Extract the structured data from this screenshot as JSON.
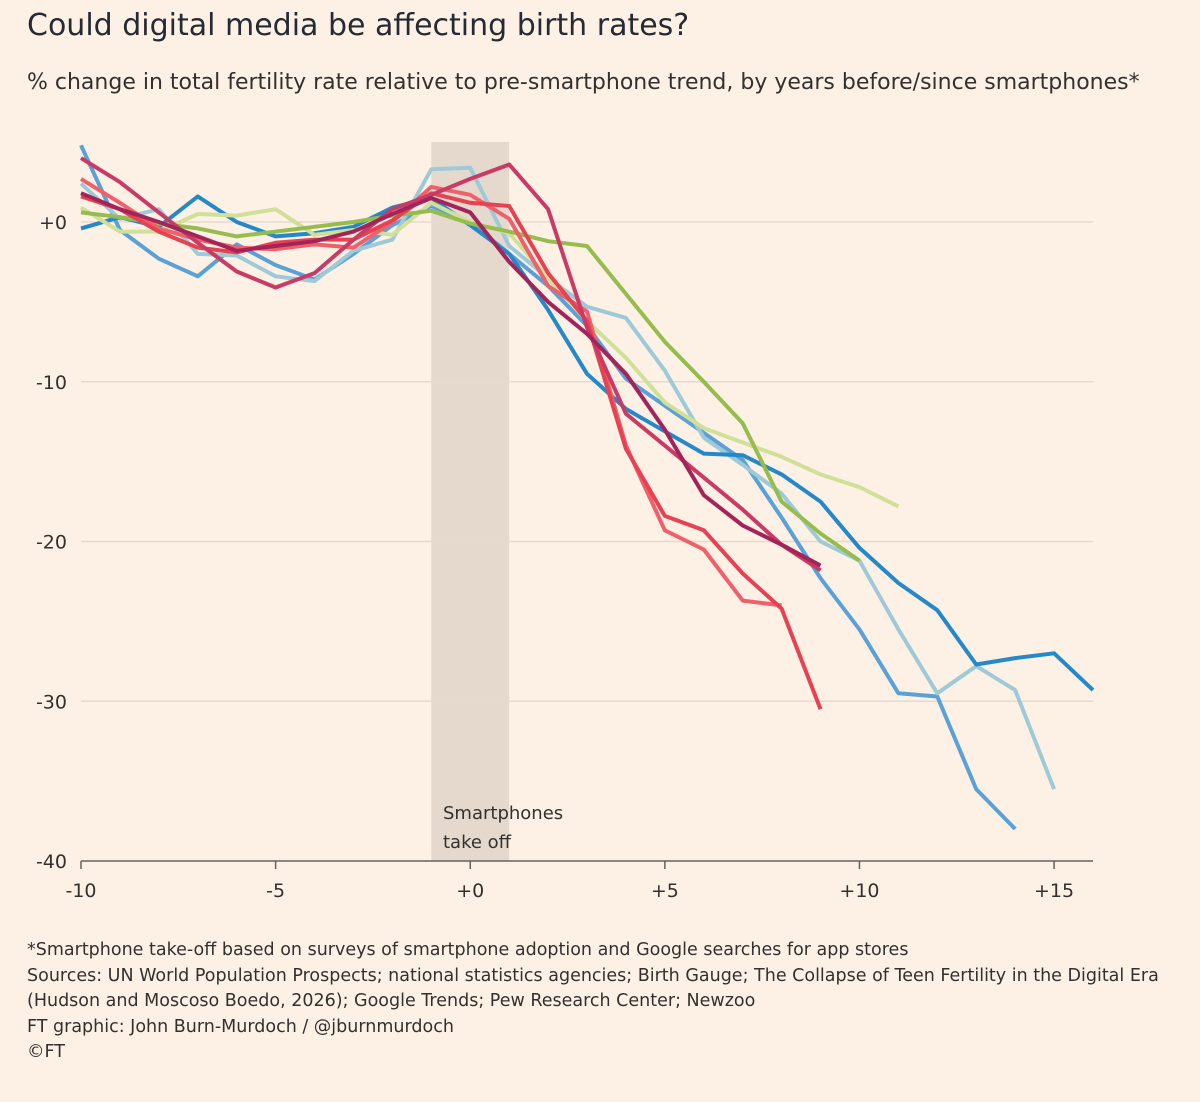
{
  "title": "Could digital media be affecting birth rates?",
  "subtitle": "% change in total fertility rate relative to pre-smartphone trend, by years before/since smartphones*",
  "footnotes": {
    "note": "*Smartphone take-off based on surveys of smartphone adoption and Google searches for app stores",
    "sources_line1": "Sources: UN World Population Prospects; national statistics agencies; Birth Gauge; The Collapse of Teen Fertility in the Digital Era",
    "sources_line2": "(Hudson and Moscoso Boedo, 2026); Google Trends; Pew Research Center; Newzoo",
    "credit": "FT graphic: John Burn-Murdoch / @jburnmurdoch",
    "copyright": "©FT"
  },
  "chart_data": {
    "type": "line",
    "title": "Could digital media be affecting birth rates?",
    "subtitle": "% change in total fertility rate relative to pre-smartphone trend, by years before/since smartphones*",
    "xlim": [
      -10,
      16
    ],
    "ylim": [
      -40,
      5
    ],
    "x_ticks": [
      {
        "value": -10,
        "label": "-10"
      },
      {
        "value": -5,
        "label": "-5"
      },
      {
        "value": 0,
        "label": "+0"
      },
      {
        "value": 5,
        "label": "+5"
      },
      {
        "value": 10,
        "label": "+10"
      },
      {
        "value": 15,
        "label": "+15"
      }
    ],
    "y_ticks": [
      {
        "value": 0,
        "label": "+0"
      },
      {
        "value": -10,
        "label": "-10"
      },
      {
        "value": -20,
        "label": "-20"
      },
      {
        "value": -30,
        "label": "-30"
      },
      {
        "value": -40,
        "label": "-40"
      }
    ],
    "grid": true,
    "shaded_band": {
      "x0": -1,
      "x1": 1,
      "label_lines": [
        "Smartphones",
        "take off"
      ],
      "color": "#e5d9ce"
    },
    "series": [
      {
        "color": "#5aa1d8",
        "x": [
          -10,
          -9,
          -8,
          -7,
          -6,
          -5,
          -4,
          -3,
          -2,
          -1,
          0,
          1,
          2,
          3,
          4,
          5,
          6,
          7,
          8,
          9,
          10,
          11,
          12,
          13,
          14
        ],
        "y": [
          4.8,
          -0.5,
          -2.3,
          -3.4,
          -1.4,
          -2.7,
          -3.6,
          -2.0,
          -0.2,
          1.0,
          0.0,
          -2.0,
          -4.0,
          -6.5,
          -9.8,
          -11.5,
          -13.2,
          -14.9,
          -18.5,
          -22.3,
          -25.5,
          -29.5,
          -29.7,
          -35.5,
          -38.0
        ]
      },
      {
        "color": "#9ecad8",
        "x": [
          -10,
          -9,
          -8,
          -7,
          -6,
          -5,
          -4,
          -3,
          -2,
          -1,
          0,
          1,
          2,
          3,
          4,
          5,
          6,
          7,
          8,
          9,
          10,
          11,
          12,
          13,
          14,
          15
        ],
        "y": [
          2.4,
          0.2,
          0.8,
          -2.0,
          -2.1,
          -3.4,
          -3.7,
          -1.8,
          -1.1,
          3.3,
          3.4,
          -1.5,
          -3.5,
          -5.3,
          -6.0,
          -9.3,
          -13.5,
          -15.2,
          -17.0,
          -20.0,
          -21.2,
          -25.5,
          -29.5,
          -27.8,
          -29.3,
          -35.5
        ]
      },
      {
        "color": "#2488c9",
        "x": [
          -10,
          -9,
          -8,
          -7,
          -6,
          -5,
          -4,
          -3,
          -2,
          -1,
          0,
          1,
          2,
          3,
          4,
          5,
          6,
          7,
          8,
          9,
          10,
          11,
          12,
          13,
          14,
          15,
          16
        ],
        "y": [
          -0.4,
          0.3,
          -0.3,
          1.6,
          0.0,
          -0.9,
          -0.7,
          -0.3,
          0.9,
          1.5,
          -0.2,
          -2.0,
          -5.5,
          -9.5,
          -11.7,
          -13.1,
          -14.5,
          -14.6,
          -15.8,
          -17.5,
          -20.4,
          -22.6,
          -24.3,
          -27.7,
          -27.3,
          -27.0,
          -29.3
        ]
      },
      {
        "color": "#d0e098",
        "x": [
          -10,
          -9,
          -8,
          -7,
          -6,
          -5,
          -4,
          -3,
          -2,
          -1,
          0,
          1,
          2,
          3,
          4,
          5,
          6,
          7,
          8,
          9,
          10,
          11
        ],
        "y": [
          0.9,
          -0.6,
          -0.6,
          0.5,
          0.4,
          0.8,
          -0.8,
          -0.5,
          -0.8,
          1.2,
          0.0,
          -0.7,
          -3.5,
          -6.2,
          -8.5,
          -11.3,
          -12.9,
          -13.8,
          -14.7,
          -15.8,
          -16.6,
          -17.8
        ]
      },
      {
        "color": "#96bc4e",
        "x": [
          -10,
          -9,
          -8,
          -7,
          -6,
          -5,
          -4,
          -3,
          -2,
          -1,
          0,
          1,
          2,
          3,
          4,
          5,
          6,
          7,
          8,
          9,
          10
        ],
        "y": [
          0.6,
          0.3,
          -0.1,
          -0.4,
          -0.9,
          -0.6,
          -0.3,
          0.0,
          0.4,
          0.7,
          -0.1,
          -0.6,
          -1.2,
          -1.5,
          -4.5,
          -7.5,
          -10.0,
          -12.6,
          -17.5,
          -19.5,
          -21.2
        ]
      },
      {
        "color": "#f0606a",
        "x": [
          -10,
          -9,
          -8,
          -7,
          -6,
          -5,
          -4,
          -3,
          -2,
          -1,
          0,
          1,
          2,
          3,
          4,
          5,
          6,
          7,
          8
        ],
        "y": [
          2.7,
          1.2,
          -0.4,
          -1.1,
          -1.6,
          -1.7,
          -1.4,
          -1.6,
          0.0,
          2.2,
          1.7,
          0.2,
          -4.0,
          -5.6,
          -14.0,
          -19.3,
          -20.5,
          -23.7,
          -24.0
        ]
      },
      {
        "color": "#e64252",
        "x": [
          -10,
          -9,
          -8,
          -7,
          -6,
          -5,
          -4,
          -3,
          -2,
          -1,
          0,
          1,
          2,
          3,
          4,
          5,
          6,
          7,
          8,
          9
        ],
        "y": [
          1.6,
          0.8,
          -0.6,
          -1.6,
          -1.9,
          -1.3,
          -1.1,
          -1.1,
          0.1,
          1.8,
          1.2,
          1.0,
          -3.2,
          -6.2,
          -14.2,
          -18.4,
          -19.3,
          -22.0,
          -24.2,
          -30.5
        ]
      },
      {
        "color": "#c93b65",
        "x": [
          -10,
          -9,
          -8,
          -7,
          -6,
          -5,
          -4,
          -3,
          -2,
          -1,
          0,
          1,
          2,
          3,
          4,
          5,
          6,
          7,
          8,
          9
        ],
        "y": [
          4.0,
          2.5,
          0.6,
          -1.3,
          -3.1,
          -4.1,
          -3.2,
          -1.1,
          0.8,
          1.7,
          2.7,
          3.6,
          0.8,
          -6.6,
          -12.0,
          -14.0,
          -16.0,
          -18.0,
          -20.2,
          -21.8
        ]
      },
      {
        "color": "#a32459",
        "x": [
          -10,
          -9,
          -8,
          -7,
          -6,
          -5,
          -4,
          -3,
          -2,
          -1,
          0,
          1,
          2,
          3,
          4,
          5,
          6,
          7,
          8,
          9
        ],
        "y": [
          1.8,
          0.8,
          0.0,
          -0.9,
          -1.8,
          -1.5,
          -1.2,
          -0.6,
          0.5,
          1.5,
          0.6,
          -2.5,
          -5.0,
          -7.0,
          -9.5,
          -13.0,
          -17.1,
          -19.0,
          -20.2,
          -21.5
        ]
      }
    ]
  }
}
